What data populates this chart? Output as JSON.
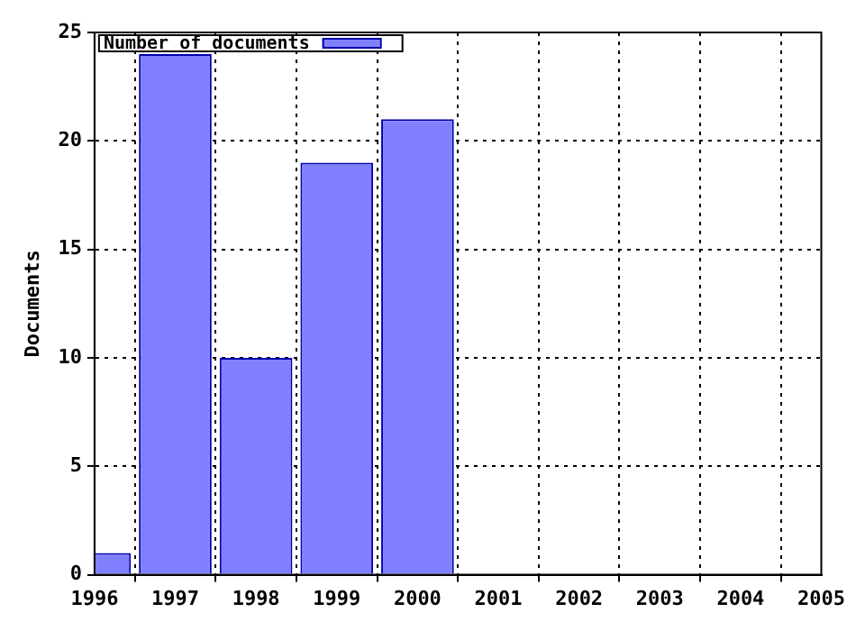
{
  "chart_data": {
    "type": "bar",
    "ylabel": "Documents",
    "x": [
      1996,
      1997,
      1998,
      1999,
      2000
    ],
    "series": [
      {
        "name": "Number of documents",
        "color": "#8080ff",
        "values": [
          1,
          24,
          10,
          19,
          21
        ]
      }
    ],
    "xlim": [
      1996,
      2005
    ],
    "xticks": [
      1996,
      1997,
      1998,
      1999,
      2000,
      2001,
      2002,
      2003,
      2004,
      2005
    ],
    "ylim": [
      0,
      25
    ],
    "yticks": [
      0,
      5,
      10,
      15,
      20,
      25
    ],
    "grid": true,
    "legend": "top left"
  }
}
